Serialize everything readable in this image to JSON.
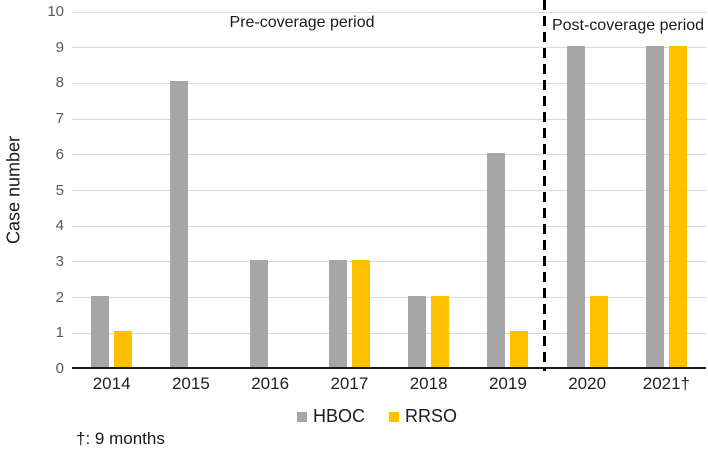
{
  "figure": {
    "ylabel": "Case number",
    "pre_period_label": "Pre-coverage period",
    "post_period_label": "Post-coverage period",
    "footnote": "†: 9 months"
  },
  "chart_data": {
    "type": "bar",
    "title": "",
    "xlabel": "",
    "ylabel": "Case number",
    "categories": [
      "2014",
      "2015",
      "2016",
      "2017",
      "2018",
      "2019",
      "2020",
      "2021†"
    ],
    "series": [
      {
        "name": "HBOC",
        "color": "#A6A6A6",
        "values": [
          2,
          8,
          3,
          3,
          2,
          6,
          9,
          9
        ]
      },
      {
        "name": "RRSO",
        "color": "#FFC000",
        "values": [
          1,
          0,
          0,
          3,
          2,
          1,
          2,
          9
        ]
      }
    ],
    "ylim": [
      0,
      10
    ],
    "yticks": [
      0,
      1,
      2,
      3,
      4,
      5,
      6,
      7,
      8,
      9,
      10
    ],
    "grid": true,
    "legend_position": "bottom",
    "annotations": {
      "pre_coverage_label": "Pre-coverage period",
      "post_coverage_label": "Post-coverage period",
      "divider_between": [
        "2019",
        "2020"
      ],
      "footnote": "†: 9 months"
    }
  },
  "colors": {
    "hboc_bar": "#A6A6A6",
    "rrso_bar": "#FFC000",
    "gridline": "#D9D9D9",
    "axis_line": "#1A1A1A",
    "y_tick_label": "#595959",
    "x_tick_label": "#1F1F1F",
    "divider": "#000000"
  }
}
